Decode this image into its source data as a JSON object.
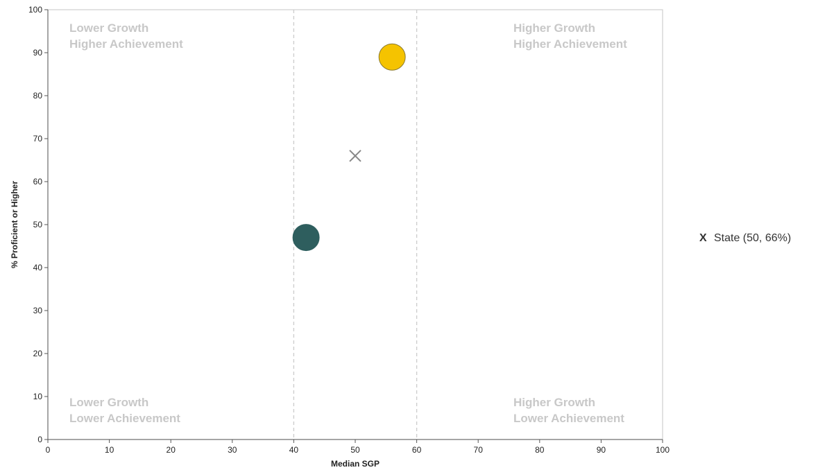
{
  "chart_data": {
    "type": "scatter",
    "xlabel": "Median SGP",
    "ylabel": "% Proficient or Higher",
    "xlim": [
      0,
      100
    ],
    "ylim": [
      0,
      100
    ],
    "x_ticks": [
      0,
      10,
      20,
      30,
      40,
      50,
      60,
      70,
      80,
      90,
      100
    ],
    "y_ticks": [
      0,
      10,
      20,
      30,
      40,
      50,
      60,
      70,
      80,
      90,
      100
    ],
    "grid": false,
    "reference_lines_x": [
      40,
      60
    ],
    "quadrant_labels": {
      "top_left": [
        "Lower Growth",
        "Higher Achievement"
      ],
      "top_right": [
        "Higher Growth",
        "Higher Achievement"
      ],
      "bottom_left": [
        "Lower Growth",
        "Lower Achievement"
      ],
      "bottom_right": [
        "Higher Growth",
        "Lower Achievement"
      ]
    },
    "points": [
      {
        "x": 56,
        "y": 89,
        "color": "#f5c300",
        "marker": "circle"
      },
      {
        "x": 42,
        "y": 47,
        "color": "#2e5e5e",
        "marker": "circle"
      },
      {
        "x": 50,
        "y": 66,
        "color": "#888888",
        "marker": "x"
      }
    ],
    "legend": {
      "position": "right",
      "entries": [
        {
          "symbol": "X",
          "label": "State (50, 66%)"
        }
      ]
    }
  }
}
